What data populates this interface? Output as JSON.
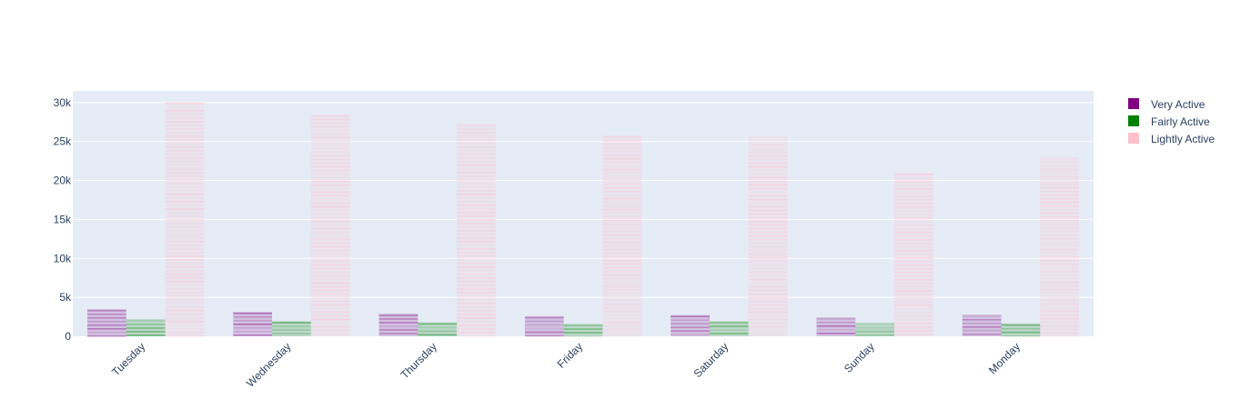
{
  "chart_data": {
    "type": "bar",
    "barmode": "group",
    "categories": [
      "Tuesday",
      "Wednesday",
      "Thursday",
      "Friday",
      "Saturday",
      "Sunday",
      "Monday"
    ],
    "series": [
      {
        "name": "Very Active",
        "color": "#800080",
        "values": [
          3500,
          3150,
          2900,
          2600,
          2750,
          2450,
          2800
        ]
      },
      {
        "name": "Fairly Active",
        "color": "#008000",
        "values": [
          2200,
          1950,
          1800,
          1600,
          1950,
          1750,
          1650
        ]
      },
      {
        "name": "Lightly Active",
        "color": "#ffc0cb",
        "values": [
          30100,
          28500,
          27300,
          25800,
          25700,
          21000,
          23000
        ]
      }
    ],
    "ylim": [
      0,
      31500
    ],
    "yticks": [
      {
        "value": 0,
        "label": "0"
      },
      {
        "value": 5000,
        "label": "5k"
      },
      {
        "value": 10000,
        "label": "10k"
      },
      {
        "value": 15000,
        "label": "15k"
      },
      {
        "value": 20000,
        "label": "20k"
      },
      {
        "value": 25000,
        "label": "25k"
      },
      {
        "value": 30000,
        "label": "30k"
      }
    ],
    "grid": true,
    "legend_position": "top-right",
    "plot_background": "#e5ecf6",
    "title": "",
    "xlabel": "",
    "ylabel": ""
  }
}
